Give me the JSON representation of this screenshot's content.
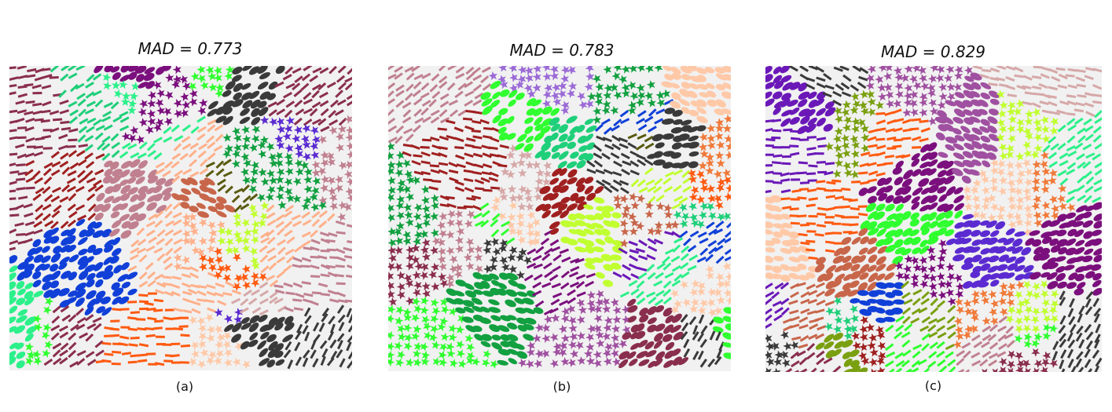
{
  "figure": {
    "panels": [
      {
        "title": "MAD = 0.773",
        "caption": "(a)"
      },
      {
        "title": "MAD = 0.783",
        "caption": "(b)"
      },
      {
        "title": "MAD = 0.829",
        "caption": "(c)"
      }
    ]
  },
  "palette": [
    "#7b0f7d",
    "#5b2bd1",
    "#1fcf7a",
    "#2cf08a",
    "#ff5a10",
    "#f07a3a",
    "#ffb08a",
    "#ffc9a8",
    "#8a2e4e",
    "#a02020",
    "#c8664a",
    "#7aa010",
    "#c0ff30",
    "#9b6ad6",
    "#6b18b8",
    "#c08090",
    "#d6a8a8",
    "#1040d8",
    "#12a040",
    "#5a5a10",
    "#3a3a3a",
    "#30ff30",
    "#a050a0",
    "#e0e0e0"
  ]
}
